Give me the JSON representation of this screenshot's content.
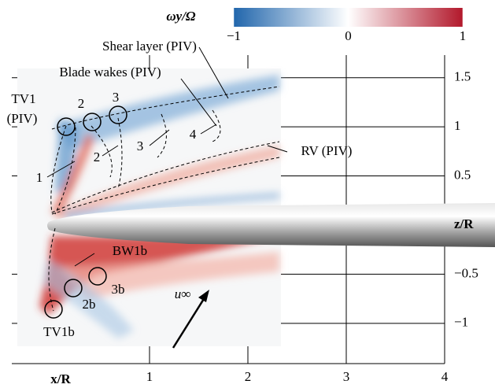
{
  "chart_data": {
    "type": "vorticity-field",
    "x_label": "x/R",
    "y_label": "z/R",
    "xlim": [
      -0.4,
      4
    ],
    "ylim": [
      -1.41,
      1.73
    ],
    "xticks": [
      1,
      2,
      3,
      4
    ],
    "yticks": [
      {
        "value": -1,
        "label": "−1"
      },
      {
        "value": -0.5,
        "label": "−0.5"
      },
      0.5,
      1,
      1.5
    ],
    "grid": true,
    "colorbar": {
      "label": "ωy/Ω",
      "clim": [
        -1,
        1
      ],
      "ticks": [
        {
          "value": -1,
          "label": "−1"
        },
        0,
        1
      ],
      "colors": [
        "#2166ac",
        "#ffffff",
        "#b2182b"
      ]
    },
    "annotations": [
      "Shear layer (PIV)",
      "Blade wakes (PIV)",
      "TV1",
      "(PIV)",
      "2",
      "3",
      "1",
      "2",
      "3",
      "4",
      "RV (PIV)",
      "BW1b",
      "2b",
      "3b",
      "TV1b",
      "u∞"
    ]
  }
}
